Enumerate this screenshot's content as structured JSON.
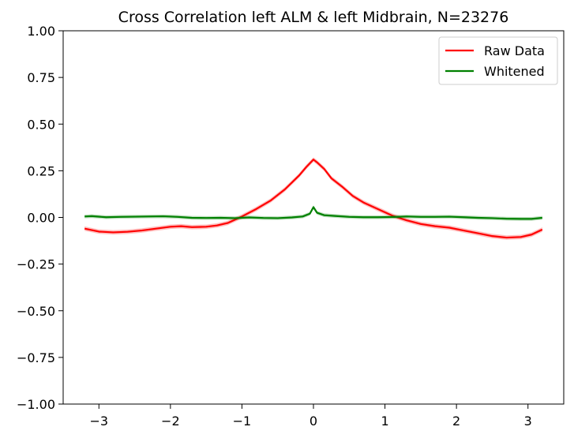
{
  "chart_data": {
    "type": "line",
    "title": "Cross Correlation left ALM & left Midbrain, N=23276",
    "xlabel": "",
    "ylabel": "",
    "xlim": [
      -3.5,
      3.5
    ],
    "ylim": [
      -1.0,
      1.0
    ],
    "x_ticks": [
      -3,
      -2,
      -1,
      0,
      1,
      2,
      3
    ],
    "x_tick_labels": [
      "−3",
      "−2",
      "−1",
      "0",
      "1",
      "2",
      "3"
    ],
    "y_ticks": [
      -1.0,
      -0.75,
      -0.5,
      -0.25,
      0.0,
      0.25,
      0.5,
      0.75,
      1.0
    ],
    "y_tick_labels": [
      "−1.00",
      "−0.75",
      "−0.50",
      "−0.25",
      "0.00",
      "0.25",
      "0.50",
      "0.75",
      "1.00"
    ],
    "grid": false,
    "legend_position": "top-right",
    "series": [
      {
        "name": "Raw Data",
        "color": "#ff0000",
        "band_width": 0.012,
        "x": [
          -3.2,
          -3.0,
          -2.8,
          -2.6,
          -2.4,
          -2.2,
          -2.0,
          -1.85,
          -1.7,
          -1.5,
          -1.35,
          -1.2,
          -1.0,
          -0.8,
          -0.6,
          -0.4,
          -0.2,
          -0.1,
          0.0,
          0.05,
          0.15,
          0.25,
          0.4,
          0.55,
          0.7,
          0.9,
          1.1,
          1.3,
          1.5,
          1.7,
          1.9,
          2.1,
          2.3,
          2.5,
          2.7,
          2.9,
          3.05,
          3.2
        ],
        "y": [
          -0.06,
          -0.076,
          -0.08,
          -0.077,
          -0.07,
          -0.06,
          -0.05,
          -0.047,
          -0.052,
          -0.05,
          -0.043,
          -0.03,
          0.005,
          0.045,
          0.09,
          0.15,
          0.225,
          0.27,
          0.31,
          0.295,
          0.26,
          0.21,
          0.165,
          0.115,
          0.08,
          0.045,
          0.01,
          -0.015,
          -0.035,
          -0.047,
          -0.055,
          -0.07,
          -0.085,
          -0.1,
          -0.108,
          -0.105,
          -0.092,
          -0.065
        ]
      },
      {
        "name": "Whitened",
        "color": "#008000",
        "band_width": 0.01,
        "x": [
          -3.2,
          -3.1,
          -2.9,
          -2.7,
          -2.5,
          -2.3,
          -2.1,
          -1.9,
          -1.7,
          -1.5,
          -1.3,
          -1.1,
          -0.9,
          -0.7,
          -0.5,
          -0.3,
          -0.15,
          -0.05,
          0.0,
          0.05,
          0.15,
          0.3,
          0.5,
          0.7,
          0.9,
          1.1,
          1.3,
          1.5,
          1.7,
          1.9,
          2.1,
          2.3,
          2.5,
          2.7,
          2.9,
          3.05,
          3.2
        ],
        "y": [
          0.005,
          0.007,
          0.001,
          0.003,
          0.004,
          0.005,
          0.006,
          0.003,
          -0.002,
          -0.003,
          -0.002,
          -0.004,
          0.0,
          -0.003,
          -0.004,
          0.0,
          0.005,
          0.02,
          0.055,
          0.025,
          0.012,
          0.008,
          0.003,
          0.001,
          0.001,
          0.002,
          0.005,
          0.003,
          0.003,
          0.004,
          0.001,
          -0.002,
          -0.004,
          -0.007,
          -0.008,
          -0.008,
          -0.002
        ]
      }
    ]
  }
}
